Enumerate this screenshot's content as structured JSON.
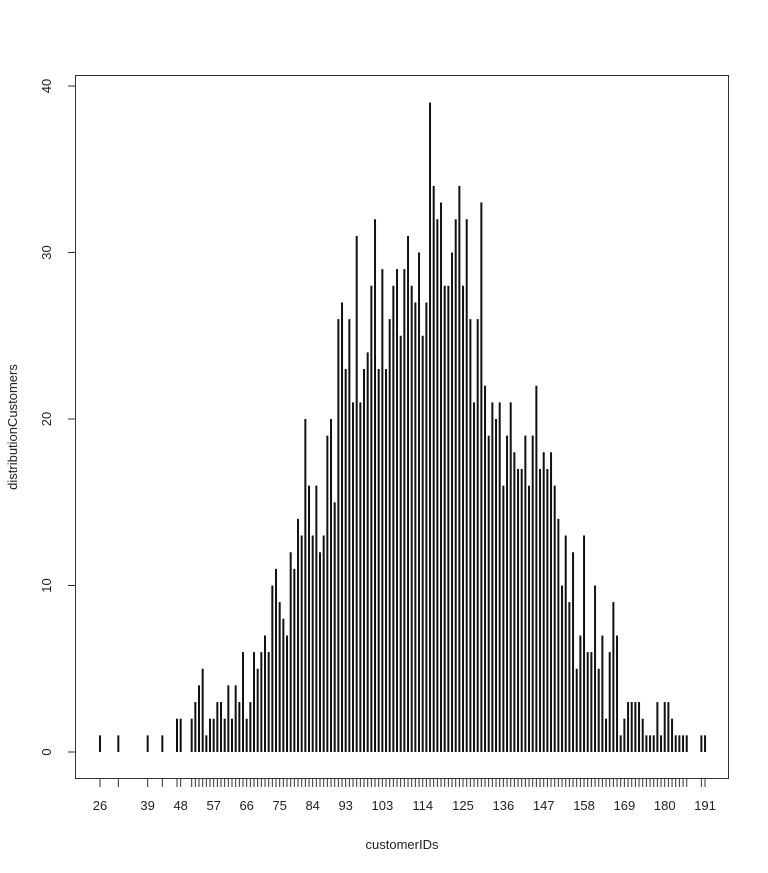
{
  "chart_data": {
    "type": "bar",
    "title": "",
    "xlabel": "customerIDs",
    "ylabel": "distributionCustomers",
    "ylim": [
      0,
      40
    ],
    "xlim": [
      26,
      191
    ],
    "grid": false,
    "legend": null,
    "y_ticks": [
      0,
      10,
      20,
      30,
      40
    ],
    "x_tick_labels": [
      26,
      39,
      48,
      57,
      66,
      75,
      84,
      93,
      103,
      114,
      125,
      136,
      147,
      158,
      169,
      180,
      191
    ],
    "x": [
      26,
      31,
      39,
      43,
      47,
      48,
      51,
      52,
      53,
      54,
      55,
      56,
      57,
      58,
      59,
      60,
      61,
      62,
      63,
      64,
      65,
      66,
      67,
      68,
      69,
      70,
      71,
      72,
      73,
      74,
      75,
      76,
      77,
      78,
      79,
      80,
      81,
      82,
      83,
      84,
      85,
      86,
      87,
      88,
      89,
      90,
      91,
      92,
      93,
      94,
      95,
      96,
      97,
      98,
      99,
      100,
      101,
      102,
      103,
      104,
      105,
      106,
      107,
      108,
      109,
      110,
      111,
      112,
      113,
      114,
      115,
      116,
      117,
      118,
      119,
      120,
      121,
      122,
      123,
      124,
      125,
      126,
      127,
      128,
      129,
      130,
      131,
      132,
      133,
      134,
      135,
      136,
      137,
      138,
      139,
      140,
      141,
      142,
      143,
      144,
      145,
      146,
      147,
      148,
      149,
      150,
      151,
      152,
      153,
      154,
      155,
      156,
      157,
      158,
      159,
      160,
      161,
      162,
      163,
      164,
      165,
      166,
      167,
      168,
      169,
      170,
      171,
      172,
      173,
      174,
      175,
      176,
      177,
      178,
      179,
      180,
      181,
      182,
      183,
      184,
      185,
      186,
      190,
      191
    ],
    "values": [
      1,
      1,
      1,
      1,
      2,
      2,
      2,
      3,
      4,
      5,
      1,
      2,
      2,
      3,
      3,
      2,
      4,
      2,
      4,
      3,
      6,
      2,
      3,
      6,
      5,
      6,
      7,
      6,
      10,
      11,
      9,
      8,
      7,
      12,
      11,
      14,
      13,
      20,
      16,
      13,
      16,
      12,
      13,
      19,
      20,
      15,
      26,
      27,
      23,
      26,
      21,
      31,
      21,
      23,
      24,
      28,
      32,
      23,
      29,
      23,
      26,
      28,
      29,
      25,
      29,
      31,
      28,
      27,
      30,
      25,
      27,
      39,
      34,
      32,
      33,
      28,
      28,
      30,
      32,
      34,
      28,
      32,
      26,
      21,
      26,
      33,
      22,
      19,
      21,
      20,
      21,
      16,
      19,
      21,
      18,
      17,
      17,
      19,
      16,
      19,
      22,
      17,
      18,
      17,
      18,
      16,
      14,
      10,
      13,
      9,
      12,
      5,
      7,
      13,
      6,
      6,
      10,
      5,
      7,
      2,
      6,
      9,
      7,
      1,
      2,
      3,
      3,
      3,
      3,
      2,
      1,
      1,
      1,
      3,
      1,
      3,
      3,
      2,
      1,
      1,
      1,
      1,
      1,
      1
    ]
  }
}
